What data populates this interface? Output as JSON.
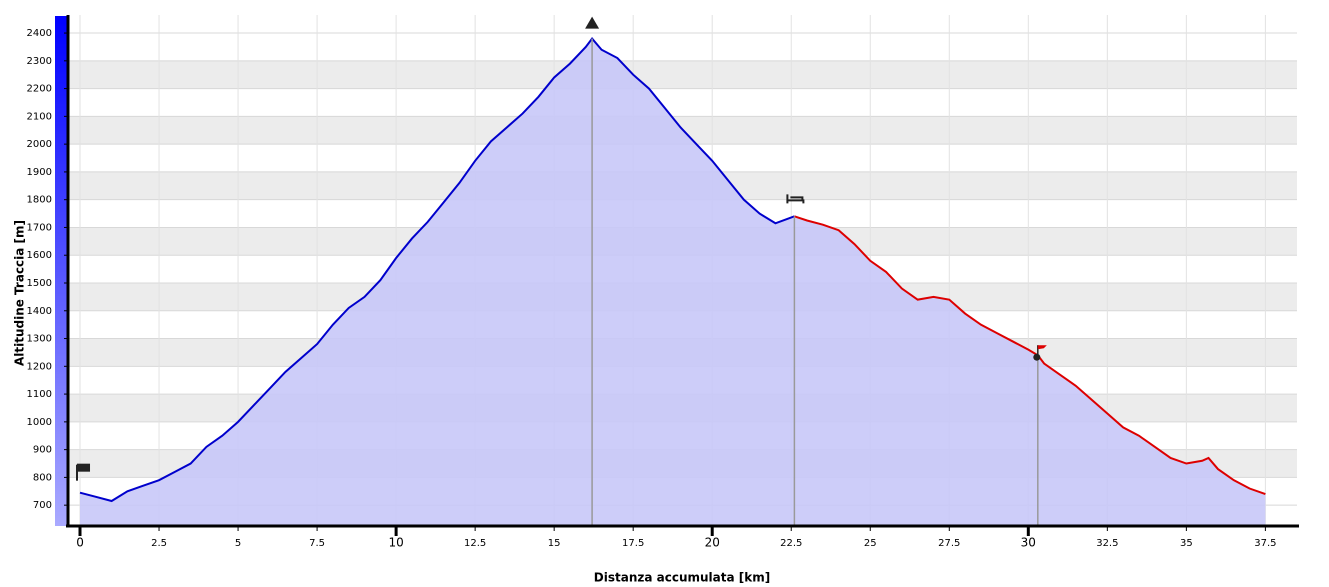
{
  "chart_data": {
    "type": "area",
    "xlabel": "Distanza accumulata [km]",
    "ylabel": "Altitudine Traccia [m]",
    "xlim": [
      -0.38,
      38.5
    ],
    "ylim": [
      625,
      2465
    ],
    "xticks": [
      0,
      2.5,
      5,
      7.5,
      10,
      12.5,
      15,
      17.5,
      20,
      22.5,
      25,
      27.5,
      30,
      32.5,
      35,
      37.5
    ],
    "yticks": [
      700,
      800,
      900,
      1000,
      1100,
      1200,
      1300,
      1400,
      1500,
      1600,
      1700,
      1800,
      1900,
      2000,
      2100,
      2200,
      2300,
      2400
    ],
    "grid": true,
    "fill_color": "#c8c8f8",
    "series": [
      {
        "color": "#0000cc",
        "x": [
          0,
          0.5,
          1,
          1.5,
          2,
          2.5,
          3,
          3.5,
          4,
          4.5,
          5,
          5.5,
          6,
          6.5,
          7,
          7.5,
          8,
          8.5,
          9,
          9.5,
          10,
          10.5,
          11,
          11.5,
          12,
          12.5,
          13,
          13.5,
          14,
          14.5,
          15,
          15.5,
          16,
          16.2,
          16.5,
          17,
          17.5,
          18,
          18.5,
          19,
          19.5,
          20,
          20.5,
          21,
          21.5,
          22,
          22.6
        ],
        "values": [
          745,
          730,
          715,
          750,
          770,
          790,
          820,
          850,
          910,
          950,
          1000,
          1060,
          1120,
          1180,
          1230,
          1280,
          1350,
          1410,
          1450,
          1510,
          1590,
          1660,
          1720,
          1790,
          1860,
          1940,
          2010,
          2060,
          2110,
          2170,
          2240,
          2290,
          2350,
          2380,
          2340,
          2310,
          2250,
          2200,
          2130,
          2060,
          2000,
          1940,
          1870,
          1800,
          1750,
          1715,
          1740
        ]
      },
      {
        "color": "#dd0000",
        "x": [
          22.6,
          23,
          23.5,
          24,
          24.5,
          25,
          25.5,
          26,
          26.5,
          27,
          27.5,
          28,
          28.5,
          29,
          29.5,
          30,
          30.3,
          30.5,
          31,
          31.5,
          32,
          32.5,
          33,
          33.5,
          34,
          34.5,
          35,
          35.5,
          35.7,
          36,
          36.5,
          37,
          37.5
        ],
        "values": [
          1740,
          1725,
          1710,
          1690,
          1640,
          1580,
          1540,
          1480,
          1440,
          1450,
          1440,
          1390,
          1350,
          1320,
          1290,
          1260,
          1240,
          1210,
          1170,
          1130,
          1080,
          1030,
          980,
          950,
          910,
          870,
          850,
          860,
          870,
          830,
          790,
          760,
          740
        ]
      }
    ],
    "waypoints": [
      {
        "x": 0,
        "y": 745
      },
      {
        "x": 16.2,
        "y": 2380
      },
      {
        "x": 22.6,
        "y": 1740
      },
      {
        "x": 30.3,
        "y": 1240
      }
    ]
  }
}
